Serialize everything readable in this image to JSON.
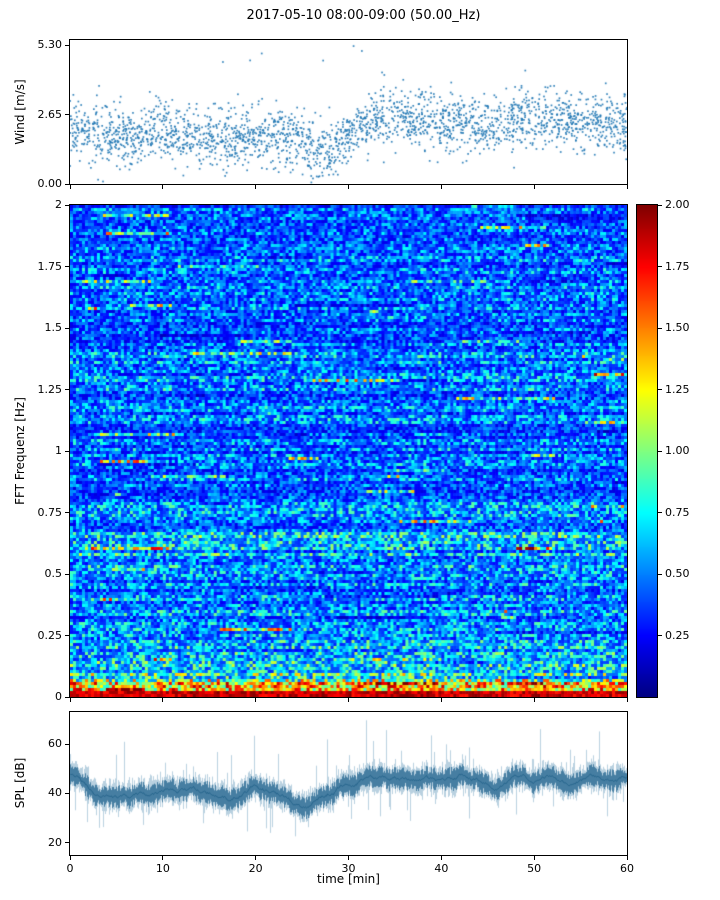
{
  "title": "2017-05-10 08:00-09:00 (50.00_Hz)",
  "colors": {
    "scatter": "#1f77b4",
    "spl_band_light": "rgba(72,133,173,0.38)",
    "spl_band": "rgba(49,112,150,0.85)",
    "spl_center": "rgba(31,95,135,0.9)",
    "axis": "#000000",
    "background": "#ffffff"
  },
  "chart_data": [
    {
      "id": "wind",
      "type": "scatter",
      "ylabel": "Wind [m/s]",
      "xlim": [
        0,
        60
      ],
      "ylim": [
        0,
        5.5
      ],
      "yticks": [
        "0.00",
        "2.65",
        "5.30"
      ],
      "ytick_values": [
        0,
        2.65,
        5.3
      ],
      "marker_color": "#1f77b4",
      "n_points": 2400,
      "noise_sd": 0.55,
      "seed": 42,
      "outlier_prob": 0.006,
      "outlier_max": 5.3,
      "mean_profile": [
        [
          0,
          2.1
        ],
        [
          3,
          1.8
        ],
        [
          6,
          1.7
        ],
        [
          9,
          2.0
        ],
        [
          12,
          1.9
        ],
        [
          15,
          1.8
        ],
        [
          18,
          1.75
        ],
        [
          21,
          1.9
        ],
        [
          24,
          1.8
        ],
        [
          27,
          1.15
        ],
        [
          29,
          1.6
        ],
        [
          31,
          2.1
        ],
        [
          33,
          2.5
        ],
        [
          35,
          2.6
        ],
        [
          38,
          2.4
        ],
        [
          41,
          2.3
        ],
        [
          44,
          2.2
        ],
        [
          47,
          2.4
        ],
        [
          50,
          2.45
        ],
        [
          53,
          2.6
        ],
        [
          56,
          2.3
        ],
        [
          58,
          2.5
        ],
        [
          60,
          2.2
        ]
      ]
    },
    {
      "id": "spectrogram",
      "type": "heatmap",
      "ylabel": "FFT Frequenz [Hz]",
      "xlim": [
        0,
        60
      ],
      "ylim": [
        0,
        2
      ],
      "ytick_values": [
        0,
        0.25,
        0.5,
        0.75,
        1,
        1.25,
        1.5,
        1.75,
        2
      ],
      "ytick_labels": [
        "0",
        "0.25",
        "0.5",
        "0.75",
        "1",
        "1.25",
        "1.5",
        "1.75",
        "2"
      ],
      "vmin": 0,
      "vmax": 2,
      "colormap": "jet",
      "colormap_stops": [
        [
          0,
          [
            0,
            0,
            128
          ]
        ],
        [
          0.125,
          [
            0,
            0,
            255
          ]
        ],
        [
          0.375,
          [
            0,
            255,
            255
          ]
        ],
        [
          0.625,
          [
            255,
            255,
            0
          ]
        ],
        [
          0.875,
          [
            255,
            0,
            0
          ]
        ],
        [
          1,
          [
            128,
            0,
            0
          ]
        ]
      ],
      "colorbar_ticks": [
        "2.00",
        "1.75",
        "1.50",
        "1.25",
        "1.00",
        "0.75",
        "0.50",
        "0.25"
      ],
      "colorbar_tick_values": [
        2,
        1.75,
        1.5,
        1.25,
        1,
        0.75,
        0.5,
        0.25
      ],
      "grid": {
        "cols": 186,
        "rows": 164
      },
      "seed": 7,
      "streak_prob": 0.22,
      "dark_streak_prob": 0.18,
      "freq_profile": [
        [
          0,
          1.95
        ],
        [
          0.02,
          1.6
        ],
        [
          0.04,
          1.15
        ],
        [
          0.07,
          0.8
        ],
        [
          0.1,
          0.65
        ],
        [
          0.15,
          0.55
        ],
        [
          0.2,
          0.52
        ],
        [
          0.3,
          0.46
        ],
        [
          0.45,
          0.44
        ],
        [
          0.55,
          0.5
        ],
        [
          0.63,
          0.6
        ],
        [
          0.7,
          0.5
        ],
        [
          0.8,
          0.44
        ],
        [
          1.0,
          0.42
        ],
        [
          1.2,
          0.43
        ],
        [
          1.35,
          0.46
        ],
        [
          1.5,
          0.42
        ],
        [
          1.75,
          0.42
        ],
        [
          2,
          0.4
        ]
      ]
    },
    {
      "id": "spl",
      "type": "line",
      "ylabel": "SPL [dB]",
      "xlabel": "time [min]",
      "xlim": [
        0,
        60
      ],
      "ylim": [
        15,
        73
      ],
      "ytick_values": [
        20,
        40,
        60
      ],
      "ytick_labels": [
        "20",
        "40",
        "60"
      ],
      "xtick_values": [
        0,
        10,
        20,
        30,
        40,
        50,
        60
      ],
      "xtick_labels": [
        "0",
        "10",
        "20",
        "30",
        "40",
        "50",
        "60"
      ],
      "seed": 99,
      "band_halfwidth": 3.2,
      "spike_prob": 0.055,
      "mean_profile": [
        [
          0,
          48
        ],
        [
          1.5,
          44
        ],
        [
          3,
          39
        ],
        [
          5,
          38
        ],
        [
          7,
          40
        ],
        [
          9,
          41
        ],
        [
          11,
          42
        ],
        [
          13,
          41
        ],
        [
          15,
          40
        ],
        [
          17,
          38
        ],
        [
          19,
          42
        ],
        [
          20,
          44
        ],
        [
          22,
          40
        ],
        [
          24,
          37
        ],
        [
          26,
          36
        ],
        [
          28,
          40
        ],
        [
          30,
          45
        ],
        [
          32,
          47
        ],
        [
          34,
          46
        ],
        [
          36,
          45
        ],
        [
          38,
          46
        ],
        [
          40,
          44
        ],
        [
          42,
          46
        ],
        [
          44,
          45
        ],
        [
          46,
          44
        ],
        [
          48,
          46
        ],
        [
          50,
          45
        ],
        [
          52,
          47
        ],
        [
          54,
          44
        ],
        [
          56,
          46
        ],
        [
          58,
          45
        ],
        [
          60,
          47
        ]
      ]
    }
  ]
}
